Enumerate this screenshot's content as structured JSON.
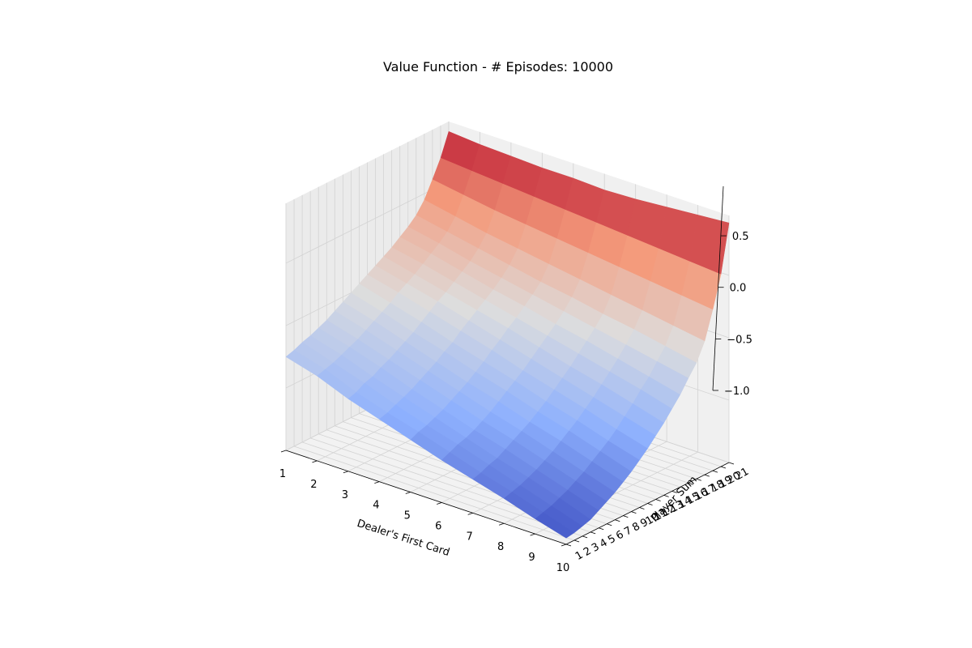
{
  "chart_data": {
    "type": "surface3d",
    "title": "Value Function - # Episodes: 10000",
    "xlabel": "Dealer's First Card",
    "ylabel": "Player Sum",
    "zlabel": "",
    "x": [
      1,
      2,
      3,
      4,
      5,
      6,
      7,
      8,
      9,
      10
    ],
    "y": [
      1,
      2,
      3,
      4,
      5,
      6,
      7,
      8,
      9,
      10,
      11,
      12,
      13,
      14,
      15,
      16,
      17,
      18,
      19,
      20,
      21
    ],
    "zlim": [
      -1.0,
      0.98
    ],
    "z_ticks": [
      -1.0,
      -0.5,
      0.0,
      0.5
    ],
    "z_tick_labels": [
      "−1.0",
      "−0.5",
      "0.0",
      "0.5"
    ],
    "colormap": "coolwarm",
    "grid": true,
    "z_description": "Estimated state value V(dealer card, player sum); rows indexed by player sum 1-21, columns by dealer's first card 1-10",
    "values": [
      [
        -0.25,
        -0.32,
        -0.42,
        -0.5,
        -0.58,
        -0.66,
        -0.73,
        -0.8,
        -0.88,
        -0.95
      ],
      [
        -0.23,
        -0.3,
        -0.4,
        -0.48,
        -0.55,
        -0.63,
        -0.71,
        -0.78,
        -0.86,
        -0.94
      ],
      [
        -0.2,
        -0.28,
        -0.36,
        -0.45,
        -0.53,
        -0.6,
        -0.68,
        -0.76,
        -0.84,
        -0.92
      ],
      [
        -0.18,
        -0.25,
        -0.34,
        -0.42,
        -0.5,
        -0.58,
        -0.66,
        -0.73,
        -0.81,
        -0.9
      ],
      [
        -0.15,
        -0.22,
        -0.3,
        -0.39,
        -0.47,
        -0.55,
        -0.62,
        -0.7,
        -0.78,
        -0.86
      ],
      [
        -0.12,
        -0.19,
        -0.27,
        -0.35,
        -0.43,
        -0.51,
        -0.58,
        -0.66,
        -0.74,
        -0.82
      ],
      [
        -0.08,
        -0.15,
        -0.23,
        -0.31,
        -0.39,
        -0.47,
        -0.54,
        -0.62,
        -0.7,
        -0.78
      ],
      [
        -0.04,
        -0.11,
        -0.19,
        -0.27,
        -0.35,
        -0.42,
        -0.5,
        -0.57,
        -0.65,
        -0.73
      ],
      [
        0.0,
        -0.07,
        -0.15,
        -0.22,
        -0.3,
        -0.37,
        -0.45,
        -0.52,
        -0.6,
        -0.68
      ],
      [
        0.04,
        -0.03,
        -0.1,
        -0.18,
        -0.25,
        -0.32,
        -0.4,
        -0.47,
        -0.55,
        -0.62
      ],
      [
        0.08,
        0.02,
        -0.05,
        -0.12,
        -0.19,
        -0.27,
        -0.34,
        -0.41,
        -0.49,
        -0.56
      ],
      [
        0.12,
        0.06,
        0.0,
        -0.07,
        -0.14,
        -0.21,
        -0.28,
        -0.35,
        -0.42,
        -0.49
      ],
      [
        0.16,
        0.1,
        0.04,
        -0.02,
        -0.08,
        -0.15,
        -0.22,
        -0.28,
        -0.35,
        -0.42
      ],
      [
        0.2,
        0.15,
        0.09,
        0.03,
        -0.03,
        -0.09,
        -0.15,
        -0.21,
        -0.27,
        -0.34
      ],
      [
        0.25,
        0.2,
        0.14,
        0.08,
        0.03,
        -0.03,
        -0.08,
        -0.14,
        -0.2,
        -0.26
      ],
      [
        0.3,
        0.25,
        0.19,
        0.14,
        0.09,
        0.04,
        -0.01,
        -0.06,
        -0.11,
        -0.16
      ],
      [
        0.36,
        0.31,
        0.26,
        0.21,
        0.16,
        0.12,
        0.07,
        0.03,
        -0.02,
        -0.07
      ],
      [
        0.45,
        0.4,
        0.35,
        0.31,
        0.27,
        0.23,
        0.19,
        0.15,
        0.11,
        0.07
      ],
      [
        0.58,
        0.54,
        0.5,
        0.47,
        0.44,
        0.41,
        0.38,
        0.35,
        0.32,
        0.29
      ],
      [
        0.72,
        0.7,
        0.68,
        0.66,
        0.64,
        0.62,
        0.6,
        0.58,
        0.56,
        0.54
      ],
      [
        0.9,
        0.88,
        0.87,
        0.86,
        0.86,
        0.85,
        0.86,
        0.88,
        0.9,
        0.92
      ]
    ]
  }
}
